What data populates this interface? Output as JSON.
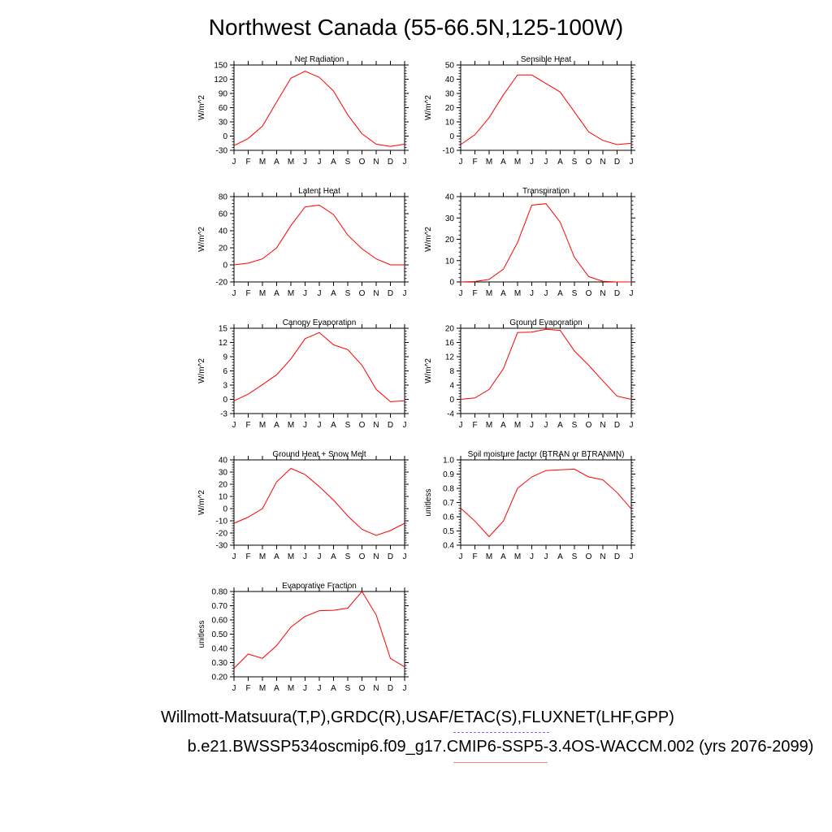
{
  "page": {
    "title": "Northwest Canada (55-66.5N,125-100W)",
    "footer_obs": "Willmott-Matsuura(T,P),GRDC(R),USAF/ETAC(S),FLUXNET(LHF,GPP)",
    "footer_case": "b.e21.BWSSP534oscmip6.f09_g17.CMIP6-SSP5-3.4OS-WACCM.002 (yrs 2076-2099)",
    "line_color": "#ff0000",
    "obs_legend_color": "#6f6fff",
    "case_legend_color": "#ff8080"
  },
  "chart_data": [
    {
      "type": "line",
      "title": "Net Radiation",
      "ylabel": "W/m^2",
      "x": [
        "J",
        "F",
        "M",
        "A",
        "M",
        "J",
        "J",
        "A",
        "S",
        "O",
        "N",
        "D",
        "J"
      ],
      "ylim": [
        -30,
        150
      ],
      "yticks": [
        -30,
        0,
        30,
        60,
        90,
        120,
        150
      ],
      "ytick_labels": [
        "-30",
        "0",
        "30",
        "60",
        "90",
        "120",
        "150"
      ],
      "values": [
        -20,
        -5,
        21,
        72,
        122,
        137,
        124,
        95,
        45,
        5,
        -17,
        -22,
        -17
      ]
    },
    {
      "type": "line",
      "title": "Sensible Heat",
      "ylabel": "W/m^2",
      "x": [
        "J",
        "F",
        "M",
        "A",
        "M",
        "J",
        "J",
        "A",
        "S",
        "O",
        "N",
        "D",
        "J"
      ],
      "ylim": [
        -10,
        50
      ],
      "yticks": [
        -10,
        0,
        10,
        20,
        30,
        40,
        50
      ],
      "ytick_labels": [
        "-10",
        "0",
        "10",
        "20",
        "30",
        "40",
        "50"
      ],
      "values": [
        -6,
        1,
        13,
        29,
        43,
        43,
        37,
        31,
        17,
        3,
        -3,
        -6,
        -5
      ]
    },
    {
      "type": "line",
      "title": "Latent Heat",
      "ylabel": "W/m^2",
      "x": [
        "J",
        "F",
        "M",
        "A",
        "M",
        "J",
        "J",
        "A",
        "S",
        "O",
        "N",
        "D",
        "J"
      ],
      "ylim": [
        -20,
        80
      ],
      "yticks": [
        -20,
        0,
        20,
        40,
        60,
        80
      ],
      "ytick_labels": [
        "-20",
        "0",
        "20",
        "40",
        "60",
        "80"
      ],
      "values": [
        0,
        2,
        7,
        20,
        46,
        68,
        70,
        59,
        35,
        19,
        7,
        0,
        0
      ]
    },
    {
      "type": "line",
      "title": "Transpiration",
      "ylabel": "W/m^2",
      "x": [
        "J",
        "F",
        "M",
        "A",
        "M",
        "J",
        "J",
        "A",
        "S",
        "O",
        "N",
        "D",
        "J"
      ],
      "ylim": [
        0,
        40
      ],
      "yticks": [
        0,
        10,
        20,
        30,
        40
      ],
      "ytick_labels": [
        "0",
        "10",
        "20",
        "30",
        "40"
      ],
      "values": [
        0,
        0.2,
        1.2,
        6,
        18.5,
        36,
        36.7,
        28,
        11.5,
        2.5,
        0.3,
        0,
        0
      ]
    },
    {
      "type": "line",
      "title": "Canopy Evaporation",
      "ylabel": "W/m^2",
      "x": [
        "J",
        "F",
        "M",
        "A",
        "M",
        "J",
        "J",
        "A",
        "S",
        "O",
        "N",
        "D",
        "J"
      ],
      "ylim": [
        -3,
        15
      ],
      "yticks": [
        -3,
        0,
        3,
        6,
        9,
        12,
        15
      ],
      "ytick_labels": [
        "-3",
        "0",
        "3",
        "6",
        "9",
        "12",
        "15"
      ],
      "values": [
        -0.3,
        1.1,
        3.1,
        5.2,
        8.5,
        12.8,
        14.1,
        11.5,
        10.5,
        7.2,
        2.1,
        -0.5,
        -0.3
      ]
    },
    {
      "type": "line",
      "title": "Ground Evaporation",
      "ylabel": "W/m^2",
      "x": [
        "J",
        "F",
        "M",
        "A",
        "M",
        "J",
        "J",
        "A",
        "S",
        "O",
        "N",
        "D",
        "J"
      ],
      "ylim": [
        -4,
        20
      ],
      "yticks": [
        -4,
        0,
        4,
        8,
        12,
        16,
        20
      ],
      "ytick_labels": [
        "-4",
        "0",
        "4",
        "8",
        "12",
        "16",
        "20"
      ],
      "values": [
        0,
        0.4,
        2.8,
        8.6,
        18.8,
        18.9,
        19.7,
        19.4,
        13.6,
        9.6,
        5.2,
        0.9,
        0
      ]
    },
    {
      "type": "line",
      "title": "Ground Heat + Snow Melt",
      "ylabel": "W/m^2",
      "x": [
        "J",
        "F",
        "M",
        "A",
        "M",
        "J",
        "J",
        "A",
        "S",
        "O",
        "N",
        "D",
        "J"
      ],
      "ylim": [
        -30,
        40
      ],
      "yticks": [
        -30,
        -20,
        -10,
        0,
        10,
        20,
        30,
        40
      ],
      "ytick_labels": [
        "-30",
        "-20",
        "-10",
        "0",
        "10",
        "20",
        "30",
        "40"
      ],
      "values": [
        -12,
        -7,
        0,
        22,
        33,
        28,
        18,
        7,
        -6,
        -17,
        -22,
        -18,
        -12
      ]
    },
    {
      "type": "line",
      "title": "Soil moisture factor (BTRAN or BTRANMN)",
      "ylabel": "unitless",
      "x": [
        "J",
        "F",
        "M",
        "A",
        "M",
        "J",
        "J",
        "A",
        "S",
        "O",
        "N",
        "D",
        "J"
      ],
      "ylim": [
        0.4,
        1.0
      ],
      "yticks": [
        0.4,
        0.5,
        0.6,
        0.7,
        0.8,
        0.9,
        1.0
      ],
      "ytick_labels": [
        "0.4",
        "0.5",
        "0.6",
        "0.7",
        "0.8",
        "0.9",
        "1.0"
      ],
      "values": [
        0.66,
        0.57,
        0.46,
        0.57,
        0.8,
        0.88,
        0.925,
        0.93,
        0.935,
        0.88,
        0.86,
        0.77,
        0.655
      ]
    },
    {
      "type": "line",
      "title": "Evaporative Fraction",
      "ylabel": "unitless",
      "x": [
        "J",
        "F",
        "M",
        "A",
        "M",
        "J",
        "J",
        "A",
        "S",
        "O",
        "N",
        "D",
        "J"
      ],
      "ylim": [
        0.2,
        0.8
      ],
      "yticks": [
        0.2,
        0.3,
        0.4,
        0.5,
        0.6,
        0.7,
        0.8
      ],
      "ytick_labels": [
        "0.20",
        "0.30",
        "0.40",
        "0.50",
        "0.60",
        "0.70",
        "0.80"
      ],
      "values": [
        0.26,
        0.36,
        0.33,
        0.42,
        0.55,
        0.625,
        0.665,
        0.668,
        0.683,
        0.8,
        0.635,
        0.33,
        0.27
      ]
    }
  ]
}
